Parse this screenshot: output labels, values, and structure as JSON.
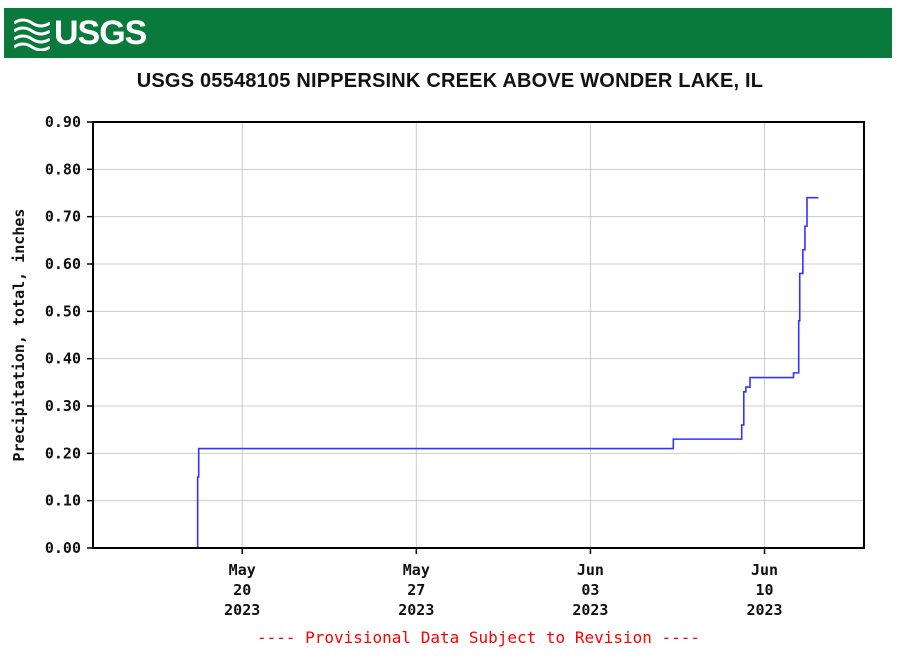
{
  "header": {
    "logo_text": "USGS",
    "brand_color": "#0a7a3c"
  },
  "chart_data": {
    "type": "line",
    "title": "USGS 05548105 NIPPERSINK CREEK ABOVE WONDER LAKE, IL",
    "ylabel": "Precipitation, total, inches",
    "xlabel": "",
    "ylim": [
      0,
      0.9
    ],
    "xlim": [
      "2023-05-14T00:00",
      "2023-06-14T00:00"
    ],
    "grid": true,
    "yticks": [
      {
        "value": 0.0,
        "label": "0.00"
      },
      {
        "value": 0.1,
        "label": "0.10"
      },
      {
        "value": 0.2,
        "label": "0.20"
      },
      {
        "value": 0.3,
        "label": "0.30"
      },
      {
        "value": 0.4,
        "label": "0.40"
      },
      {
        "value": 0.5,
        "label": "0.50"
      },
      {
        "value": 0.6,
        "label": "0.60"
      },
      {
        "value": 0.7,
        "label": "0.70"
      },
      {
        "value": 0.8,
        "label": "0.80"
      },
      {
        "value": 0.9,
        "label": "0.90"
      }
    ],
    "xticks": [
      {
        "date": "2023-05-20",
        "month": "May",
        "day": "20",
        "year": "2023"
      },
      {
        "date": "2023-05-27",
        "month": "May",
        "day": "27",
        "year": "2023"
      },
      {
        "date": "2023-06-03",
        "month": "Jun",
        "day": "03",
        "year": "2023"
      },
      {
        "date": "2023-06-10",
        "month": "Jun",
        "day": "10",
        "year": "2023"
      }
    ],
    "series": [
      {
        "color": "#3333ff",
        "points": [
          {
            "x": "2023-05-14T00:00",
            "y": 0.0
          },
          {
            "x": "2023-05-18T04:00",
            "y": 0.0
          },
          {
            "x": "2023-05-18T05:00",
            "y": 0.15
          },
          {
            "x": "2023-05-18T06:00",
            "y": 0.21
          },
          {
            "x": "2023-06-06T06:00",
            "y": 0.21
          },
          {
            "x": "2023-06-06T08:00",
            "y": 0.23
          },
          {
            "x": "2023-06-09T00:00",
            "y": 0.23
          },
          {
            "x": "2023-06-09T02:00",
            "y": 0.26
          },
          {
            "x": "2023-06-09T04:00",
            "y": 0.33
          },
          {
            "x": "2023-06-09T06:00",
            "y": 0.34
          },
          {
            "x": "2023-06-09T10:00",
            "y": 0.36
          },
          {
            "x": "2023-06-11T00:00",
            "y": 0.36
          },
          {
            "x": "2023-06-11T04:00",
            "y": 0.37
          },
          {
            "x": "2023-06-11T08:00",
            "y": 0.37
          },
          {
            "x": "2023-06-11T09:00",
            "y": 0.48
          },
          {
            "x": "2023-06-11T10:00",
            "y": 0.58
          },
          {
            "x": "2023-06-11T13:00",
            "y": 0.63
          },
          {
            "x": "2023-06-11T15:00",
            "y": 0.68
          },
          {
            "x": "2023-06-11T17:00",
            "y": 0.74
          },
          {
            "x": "2023-06-12T04:00",
            "y": 0.74
          }
        ]
      }
    ],
    "footnote": "---- Provisional Data Subject to Revision ----",
    "footnote_color": "#ff0000"
  }
}
